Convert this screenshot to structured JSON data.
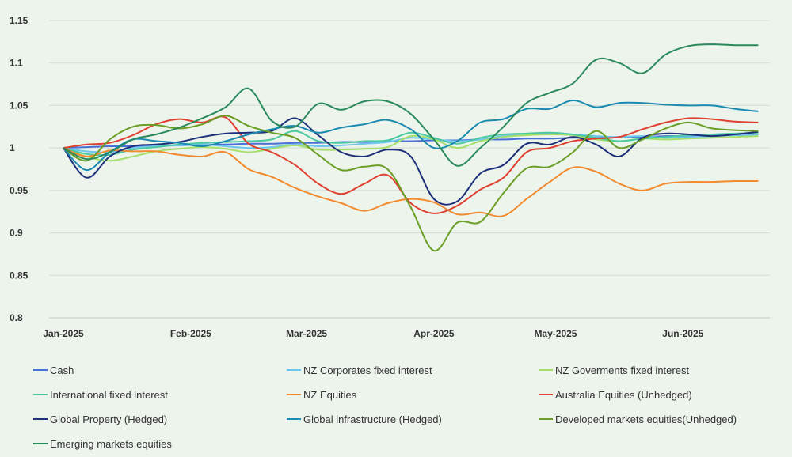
{
  "chart_data": {
    "type": "line",
    "title": "",
    "xlabel": "",
    "ylabel": "",
    "ylim": [
      0.8,
      1.15
    ],
    "yticks": [
      {
        "value": 0.8,
        "label": "0.8"
      },
      {
        "value": 0.85,
        "label": "0.85"
      },
      {
        "value": 0.9,
        "label": "0.9"
      },
      {
        "value": 0.95,
        "label": "0.95"
      },
      {
        "value": 1.0,
        "label": "1"
      },
      {
        "value": 1.05,
        "label": "1.05"
      },
      {
        "value": 1.1,
        "label": "1.1"
      },
      {
        "value": 1.15,
        "label": "1.15"
      }
    ],
    "xlim": [
      0,
      24.4
    ],
    "xticks": [
      {
        "value": 0,
        "label": "Jan-2025"
      },
      {
        "value": 4.4,
        "label": "Feb-2025"
      },
      {
        "value": 8.4,
        "label": "Mar-2025"
      },
      {
        "value": 12.8,
        "label": "Apr-2025"
      },
      {
        "value": 17.0,
        "label": "May-2025"
      },
      {
        "value": 21.4,
        "label": "Jun-2025"
      }
    ],
    "x": [
      0,
      0.8,
      1.6,
      2.4,
      3.2,
      4.0,
      4.8,
      5.6,
      6.4,
      7.2,
      8.0,
      8.8,
      9.6,
      10.4,
      11.2,
      12.0,
      12.8,
      13.6,
      14.4,
      15.2,
      16.0,
      16.8,
      17.6,
      18.4,
      19.2,
      20.0,
      20.8,
      21.6,
      22.4,
      23.2,
      24.0
    ],
    "series": [
      {
        "name": "Cash",
        "color": "#4a6fd6",
        "values": [
          1.0,
          1.001,
          1.002,
          1.002,
          1.003,
          1.003,
          1.004,
          1.004,
          1.005,
          1.005,
          1.006,
          1.006,
          1.007,
          1.007,
          1.008,
          1.008,
          1.009,
          1.009,
          1.01,
          1.01,
          1.011,
          1.011,
          1.012,
          1.012,
          1.013,
          1.013,
          1.014,
          1.014,
          1.015,
          1.015,
          1.016
        ]
      },
      {
        "name": "NZ Corporates fixed interest",
        "color": "#6cc6ee",
        "values": [
          1.0,
          0.996,
          0.995,
          1.0,
          1.002,
          1.003,
          1.004,
          1.002,
          1.0,
          1.001,
          1.004,
          1.002,
          1.003,
          1.005,
          1.007,
          1.012,
          1.01,
          1.008,
          1.01,
          1.014,
          1.016,
          1.017,
          1.016,
          1.014,
          1.013,
          1.014,
          1.012,
          1.013,
          1.014,
          1.015,
          1.016
        ]
      },
      {
        "name": "NZ Goverments fixed interest",
        "color": "#a6e06b",
        "values": [
          1.0,
          0.99,
          0.985,
          0.99,
          0.996,
          0.999,
          1.001,
          0.999,
          0.995,
          0.999,
          1.003,
          0.998,
          0.998,
          0.999,
          1.001,
          1.014,
          1.01,
          1.0,
          1.008,
          1.013,
          1.015,
          1.016,
          1.015,
          1.01,
          1.008,
          1.011,
          1.01,
          1.011,
          1.012,
          1.013,
          1.014
        ]
      },
      {
        "name": "International fixed interest",
        "color": "#4cc9a0",
        "values": [
          1.0,
          0.993,
          0.992,
          0.998,
          1.001,
          1.004,
          1.006,
          1.007,
          1.008,
          1.01,
          1.02,
          1.008,
          1.006,
          1.008,
          1.009,
          1.018,
          1.012,
          1.005,
          1.012,
          1.016,
          1.017,
          1.018,
          1.016,
          1.012,
          1.008,
          1.011,
          1.013,
          1.015,
          1.016,
          1.017,
          1.018
        ]
      },
      {
        "name": "NZ Equities",
        "color": "#f28a30",
        "values": [
          1.0,
          0.99,
          0.997,
          0.996,
          0.996,
          0.992,
          0.99,
          0.995,
          0.975,
          0.966,
          0.953,
          0.943,
          0.935,
          0.926,
          0.935,
          0.94,
          0.936,
          0.922,
          0.924,
          0.92,
          0.94,
          0.96,
          0.977,
          0.972,
          0.958,
          0.95,
          0.958,
          0.96,
          0.96,
          0.961,
          0.961
        ]
      },
      {
        "name": "Australia Equities (Unhedged)",
        "color": "#e04030",
        "values": [
          1.0,
          1.004,
          1.006,
          1.015,
          1.028,
          1.034,
          1.03,
          1.036,
          1.005,
          0.995,
          0.98,
          0.958,
          0.946,
          0.958,
          0.968,
          0.935,
          0.923,
          0.932,
          0.951,
          0.965,
          0.995,
          1.0,
          1.008,
          1.011,
          1.013,
          1.022,
          1.03,
          1.035,
          1.034,
          1.031,
          1.03
        ]
      },
      {
        "name": "Global Property (Hedged)",
        "color": "#1e2f7a",
        "values": [
          1.0,
          0.965,
          0.99,
          1.002,
          1.004,
          1.007,
          1.013,
          1.017,
          1.018,
          1.02,
          1.035,
          1.015,
          0.995,
          0.99,
          0.998,
          0.99,
          0.94,
          0.937,
          0.97,
          0.98,
          1.005,
          1.004,
          1.013,
          1.004,
          0.99,
          1.012,
          1.017,
          1.016,
          1.014,
          1.016,
          1.019
        ]
      },
      {
        "name": "Global infrastructure  (Hedged)",
        "color": "#1a8ab0",
        "values": [
          1.0,
          0.974,
          0.995,
          1.01,
          1.008,
          1.006,
          1.002,
          1.008,
          1.016,
          1.022,
          1.026,
          1.018,
          1.024,
          1.028,
          1.033,
          1.022,
          1.0,
          1.008,
          1.03,
          1.034,
          1.046,
          1.046,
          1.056,
          1.048,
          1.053,
          1.053,
          1.051,
          1.05,
          1.05,
          1.046,
          1.043
        ]
      },
      {
        "name": "Developed markets  equities(Unhedged)",
        "color": "#6a9e24",
        "values": [
          1.0,
          0.985,
          1.01,
          1.025,
          1.027,
          1.023,
          1.028,
          1.038,
          1.026,
          1.018,
          1.012,
          0.992,
          0.974,
          0.978,
          0.975,
          0.93,
          0.879,
          0.912,
          0.913,
          0.947,
          0.976,
          0.978,
          0.995,
          1.02,
          1.0,
          1.01,
          1.023,
          1.03,
          1.023,
          1.021,
          1.02
        ]
      },
      {
        "name": "Emerging markets equities",
        "color": "#2a8a5c",
        "values": [
          1.0,
          0.987,
          0.995,
          1.01,
          1.016,
          1.024,
          1.035,
          1.048,
          1.07,
          1.032,
          1.025,
          1.052,
          1.045,
          1.055,
          1.055,
          1.04,
          1.01,
          0.979,
          1.0,
          1.025,
          1.053,
          1.065,
          1.076,
          1.104,
          1.1,
          1.088,
          1.11,
          1.12,
          1.122,
          1.121,
          1.121
        ]
      }
    ]
  }
}
